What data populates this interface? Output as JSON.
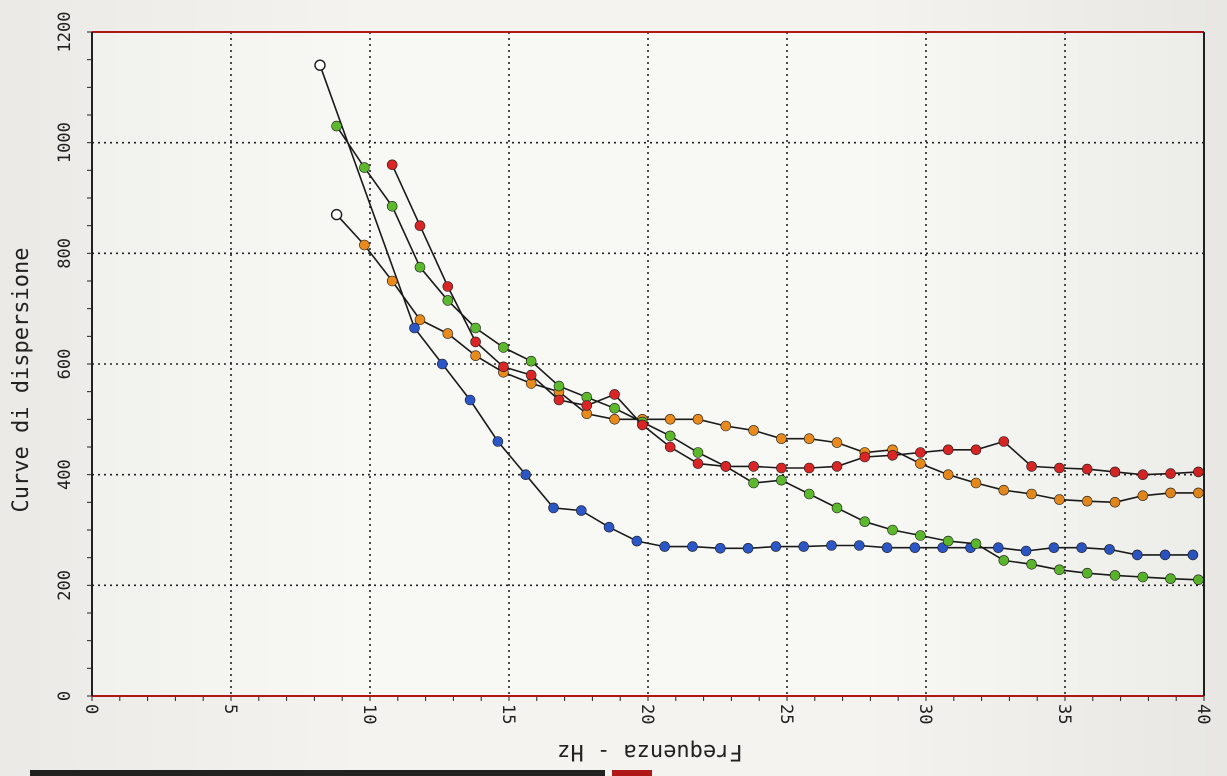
{
  "chart_data": {
    "type": "line",
    "title": "",
    "ylabel": "Curve di dispersione",
    "xlabel": "Frequenza - Hz",
    "xlim": [
      0,
      40
    ],
    "ylim": [
      0,
      1200
    ],
    "x_ticks": [
      0,
      5,
      10,
      15,
      20,
      25,
      30,
      35,
      40
    ],
    "y_ticks": [
      0,
      200,
      400,
      600,
      800,
      1000,
      1200
    ],
    "grid": true,
    "series": [
      {
        "color": "#2b56c6",
        "points": [
          [
            8.2,
            1140
          ],
          [
            11.6,
            665
          ],
          [
            12.6,
            600
          ],
          [
            13.6,
            535
          ],
          [
            14.6,
            460
          ],
          [
            15.6,
            400
          ],
          [
            16.6,
            340
          ],
          [
            17.6,
            335
          ],
          [
            18.6,
            305
          ],
          [
            19.6,
            280
          ],
          [
            20.6,
            270
          ],
          [
            21.6,
            270
          ],
          [
            22.6,
            267
          ],
          [
            23.6,
            267
          ],
          [
            24.6,
            270
          ],
          [
            25.6,
            270
          ],
          [
            26.6,
            272
          ],
          [
            27.6,
            272
          ],
          [
            28.6,
            268
          ],
          [
            29.6,
            268
          ],
          [
            30.6,
            268
          ],
          [
            31.6,
            268
          ],
          [
            32.6,
            268
          ],
          [
            33.6,
            262
          ],
          [
            34.6,
            268
          ],
          [
            35.6,
            268
          ],
          [
            36.6,
            265
          ],
          [
            37.6,
            255
          ],
          [
            38.6,
            255
          ],
          [
            39.6,
            255
          ]
        ]
      },
      {
        "color": "#e88a1c",
        "points": [
          [
            8.8,
            870
          ],
          [
            9.8,
            815
          ],
          [
            10.8,
            750
          ],
          [
            11.8,
            680
          ],
          [
            12.8,
            655
          ],
          [
            13.8,
            615
          ],
          [
            14.8,
            585
          ],
          [
            15.8,
            565
          ],
          [
            16.8,
            550
          ],
          [
            17.8,
            510
          ],
          [
            18.8,
            500
          ],
          [
            19.8,
            500
          ],
          [
            20.8,
            500
          ],
          [
            21.8,
            500
          ],
          [
            22.8,
            488
          ],
          [
            23.8,
            480
          ],
          [
            24.8,
            465
          ],
          [
            25.8,
            465
          ],
          [
            26.8,
            458
          ],
          [
            27.8,
            440
          ],
          [
            28.8,
            445
          ],
          [
            29.8,
            420
          ],
          [
            30.8,
            400
          ],
          [
            31.8,
            385
          ],
          [
            32.8,
            372
          ],
          [
            33.8,
            365
          ],
          [
            34.8,
            355
          ],
          [
            35.8,
            352
          ],
          [
            36.8,
            350
          ],
          [
            37.8,
            362
          ],
          [
            38.8,
            367
          ],
          [
            39.8,
            367
          ]
        ]
      },
      {
        "color": "#5cb82c",
        "points": [
          [
            8.8,
            1030
          ],
          [
            9.8,
            955
          ],
          [
            10.8,
            885
          ],
          [
            11.8,
            775
          ],
          [
            12.8,
            715
          ],
          [
            13.8,
            665
          ],
          [
            14.8,
            630
          ],
          [
            15.8,
            605
          ],
          [
            16.8,
            560
          ],
          [
            17.8,
            540
          ],
          [
            18.8,
            520
          ],
          [
            19.8,
            495
          ],
          [
            20.8,
            470
          ],
          [
            21.8,
            440
          ],
          [
            22.8,
            415
          ],
          [
            23.8,
            385
          ],
          [
            24.8,
            390
          ],
          [
            25.8,
            365
          ],
          [
            26.8,
            340
          ],
          [
            27.8,
            315
          ],
          [
            28.8,
            300
          ],
          [
            29.8,
            290
          ],
          [
            30.8,
            280
          ],
          [
            31.8,
            275
          ],
          [
            32.8,
            245
          ],
          [
            33.8,
            238
          ],
          [
            34.8,
            228
          ],
          [
            35.8,
            222
          ],
          [
            36.8,
            218
          ],
          [
            37.8,
            215
          ],
          [
            38.8,
            212
          ],
          [
            39.8,
            210
          ]
        ]
      },
      {
        "color": "#d92525",
        "points": [
          [
            10.8,
            960
          ],
          [
            11.8,
            850
          ],
          [
            12.8,
            740
          ],
          [
            13.8,
            640
          ],
          [
            14.8,
            595
          ],
          [
            15.8,
            580
          ],
          [
            16.8,
            535
          ],
          [
            17.8,
            525
          ],
          [
            18.8,
            545
          ],
          [
            19.8,
            490
          ],
          [
            20.8,
            450
          ],
          [
            21.8,
            420
          ],
          [
            22.8,
            415
          ],
          [
            23.8,
            415
          ],
          [
            24.8,
            412
          ],
          [
            25.8,
            412
          ],
          [
            26.8,
            415
          ],
          [
            27.8,
            432
          ],
          [
            28.8,
            435
          ],
          [
            29.8,
            440
          ],
          [
            30.8,
            445
          ],
          [
            31.8,
            445
          ],
          [
            32.8,
            460
          ],
          [
            33.8,
            415
          ],
          [
            34.8,
            412
          ],
          [
            35.8,
            410
          ],
          [
            36.8,
            405
          ],
          [
            37.8,
            400
          ],
          [
            38.8,
            402
          ],
          [
            39.8,
            405
          ]
        ]
      }
    ],
    "first_marker_hollow": true
  }
}
